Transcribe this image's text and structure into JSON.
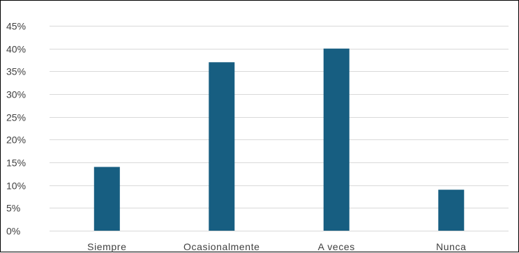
{
  "chart_data": {
    "type": "bar",
    "title": "",
    "xlabel": "",
    "ylabel": "",
    "categories": [
      "Siempre",
      "Ocasionalmente",
      "A veces",
      "Nunca"
    ],
    "values": [
      14,
      37,
      40,
      9
    ],
    "value_unit": "%",
    "ylim": [
      0,
      45
    ],
    "y_ticks": [
      0,
      5,
      10,
      15,
      20,
      25,
      30,
      35,
      40,
      45
    ],
    "y_tick_labels": [
      "0%",
      "5%",
      "10%",
      "15%",
      "20%",
      "25%",
      "30%",
      "35%",
      "40%",
      "45%"
    ],
    "grid": true,
    "legend": "none",
    "colors": {
      "bar": "#175e81",
      "grid": "#d9d9d9",
      "text": "#404040",
      "frame": "#000000"
    }
  }
}
